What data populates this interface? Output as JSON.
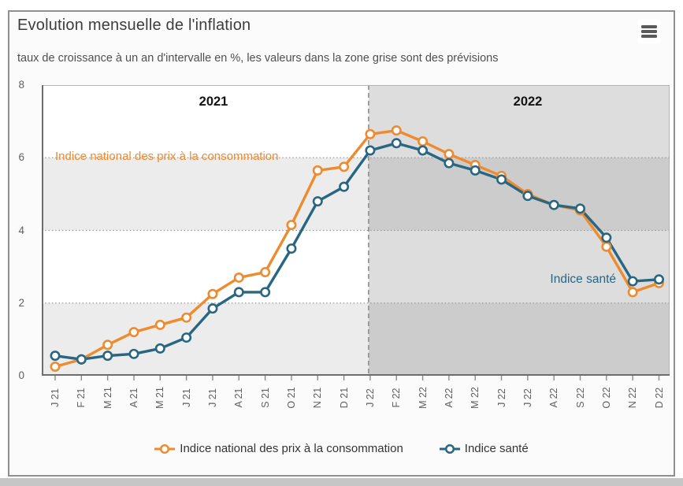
{
  "header": {
    "title": "Evolution mensuelle de l'inflation",
    "menu_icon": "hamburger-icon"
  },
  "subtitle": "taux de croissance à un an d'intervalle en %, les valeurs dans la zone grise sont des prévisions",
  "chart_data": {
    "type": "line",
    "title": "Evolution mensuelle de l'inflation",
    "subtitle": "taux de croissance à un an d'intervalle en %, les valeurs dans la zone grise sont des prévisions",
    "categories": [
      "J 21",
      "F 21",
      "M 21",
      "A 21",
      "M 21",
      "J 21",
      "J 21",
      "A 21",
      "S 21",
      "O 21",
      "N 21",
      "D 21",
      "J 22",
      "F 22",
      "M 22",
      "A 22",
      "M 22",
      "J 22",
      "J 22",
      "A 22",
      "S 22",
      "O 22",
      "N 22",
      "D 22"
    ],
    "series": [
      {
        "name": "Indice national des prix à la consommation",
        "color": "#ef8b2f",
        "values": [
          0.25,
          0.45,
          0.85,
          1.2,
          1.4,
          1.6,
          2.25,
          2.7,
          2.85,
          4.15,
          5.65,
          5.75,
          6.65,
          6.75,
          6.45,
          6.1,
          5.8,
          5.5,
          5.0,
          4.7,
          4.55,
          3.55,
          2.3,
          2.55
        ]
      },
      {
        "name": "Indice santé",
        "color": "#286682",
        "values": [
          0.55,
          0.45,
          0.55,
          0.6,
          0.75,
          1.05,
          1.85,
          2.3,
          2.3,
          3.5,
          4.8,
          5.2,
          6.2,
          6.4,
          6.2,
          5.85,
          5.65,
          5.4,
          4.95,
          4.7,
          4.6,
          3.8,
          2.6,
          2.65
        ]
      }
    ],
    "ylim": [
      0,
      8
    ],
    "yticks": [
      0,
      2,
      4,
      6,
      8
    ],
    "xlabel": "",
    "ylabel": "",
    "year_labels": [
      "2021",
      "2022"
    ],
    "forecast_zone": {
      "start_index": 12,
      "start_category": "J 22"
    },
    "band_color": "#ececec",
    "forecast_overlay_color": "rgba(0,0,0,0.135)",
    "gridline_values": [
      2,
      4,
      6
    ],
    "grid_style": "dotted",
    "legend_position": "bottom"
  }
}
